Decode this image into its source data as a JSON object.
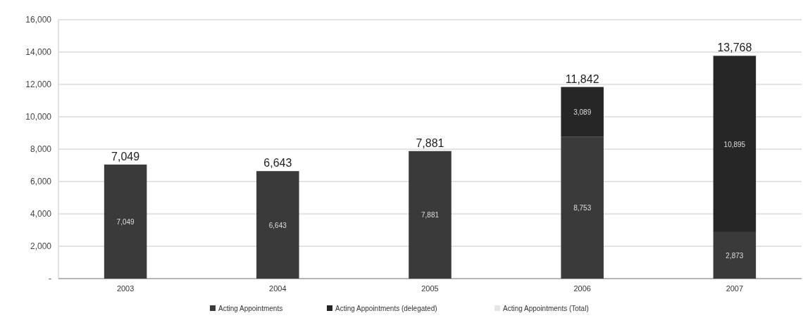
{
  "chart_data": {
    "type": "bar",
    "stacked": true,
    "categories": [
      "2003",
      "2004",
      "2005",
      "2006",
      "2007"
    ],
    "series": [
      {
        "name": "Acting Appointments",
        "color": "#3a3a3a",
        "values": [
          7049,
          6643,
          7881,
          8753,
          2873
        ],
        "value_labels": [
          "7,049",
          "6,643",
          "7,881",
          "8,753",
          "2,873"
        ]
      },
      {
        "name": "Acting Appointments (delegated)",
        "color": "#262626",
        "values": [
          null,
          null,
          null,
          3089,
          10895
        ],
        "value_labels": [
          null,
          null,
          null,
          "3,089",
          "10,895"
        ]
      },
      {
        "name": "Acting Appointments (Total)",
        "color": "#e6e6e6",
        "values": [
          null,
          null,
          null,
          null,
          null
        ]
      }
    ],
    "totals": [
      "7,049",
      "6,643",
      "7,881",
      "11,842",
      "13,768"
    ],
    "ylim": [
      0,
      16000
    ],
    "yticks": [
      {
        "value": 0,
        "label": "-"
      },
      {
        "value": 2000,
        "label": "2,000"
      },
      {
        "value": 4000,
        "label": "4,000"
      },
      {
        "value": 6000,
        "label": "6,000"
      },
      {
        "value": 8000,
        "label": "8,000"
      },
      {
        "value": 10000,
        "label": "10,000"
      },
      {
        "value": 12000,
        "label": "12,000"
      },
      {
        "value": 14000,
        "label": "14,000"
      },
      {
        "value": 16000,
        "label": "16,000"
      }
    ],
    "grid": "y",
    "legend": "bottom"
  }
}
